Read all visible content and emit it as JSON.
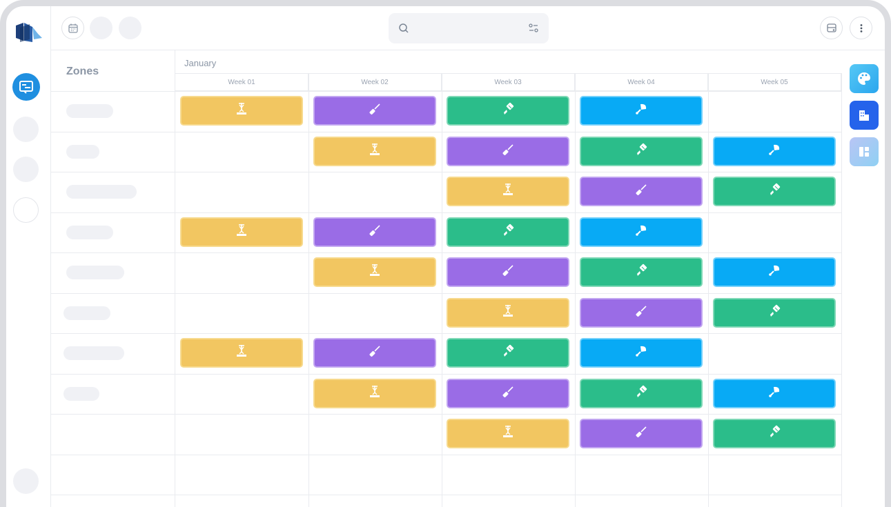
{
  "zones_title": "Zones",
  "month": "January",
  "weeks": [
    "Week 01",
    "Week 02",
    "Week 03",
    "Week 04",
    "Week 05"
  ],
  "colors": {
    "yellow": "#f2c661",
    "purple": "#9a6ce6",
    "green": "#2bbd8a",
    "blue": "#08aaf5",
    "accent": "#1f8fe0"
  },
  "task_types": {
    "yellow": "crane-icon",
    "purple": "screwdriver-icon",
    "green": "paint-brush-icon",
    "blue": "trowel-icon"
  },
  "rows": [
    [
      "yellow",
      "purple",
      "green",
      "blue",
      null
    ],
    [
      null,
      "yellow",
      "purple",
      "green",
      "blue"
    ],
    [
      null,
      null,
      "yellow",
      "purple",
      "green"
    ],
    [
      "yellow",
      "purple",
      "green",
      "blue",
      null
    ],
    [
      null,
      "yellow",
      "purple",
      "green",
      "blue"
    ],
    [
      null,
      null,
      "yellow",
      "purple",
      "green"
    ],
    [
      "yellow",
      "purple",
      "green",
      "blue",
      null
    ],
    [
      null,
      "yellow",
      "purple",
      "green",
      "blue"
    ],
    [
      null,
      null,
      "yellow",
      "purple",
      "green"
    ]
  ],
  "right_tools": [
    "palette-icon",
    "building-icon",
    "layout-icon"
  ]
}
